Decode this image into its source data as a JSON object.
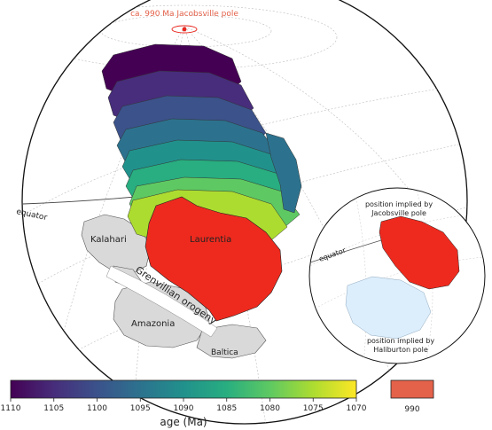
{
  "pole_label": "ca. 990 Ma Jacobsville pole",
  "labels": {
    "equator_main": "equator",
    "equator_inset": "equator",
    "kalahari": "Kalahari",
    "laurentia": "Laurentia",
    "amazonia": "Amazonia",
    "baltica": "Baltica",
    "grenvillian": "Grenvillian orogeny"
  },
  "inset": {
    "top_label_line1": "position implied by",
    "top_label_line2": "Jacobsville pole",
    "bottom_label_line1": "position implied by",
    "bottom_label_line2": "Haliburton pole"
  },
  "colorbar": {
    "title": "age (Ma)",
    "ticks": [
      "1110",
      "1105",
      "1100",
      "1095",
      "1090",
      "1085",
      "1080",
      "1075",
      "1070"
    ]
  },
  "swatch": {
    "label": "990",
    "color": "#e4614a"
  },
  "colors": {
    "laurentia_990": "#ee2a1e",
    "pole": "#e8241b",
    "pole_label": "#e4614a",
    "craton_gray": "#d9d9d9"
  }
}
